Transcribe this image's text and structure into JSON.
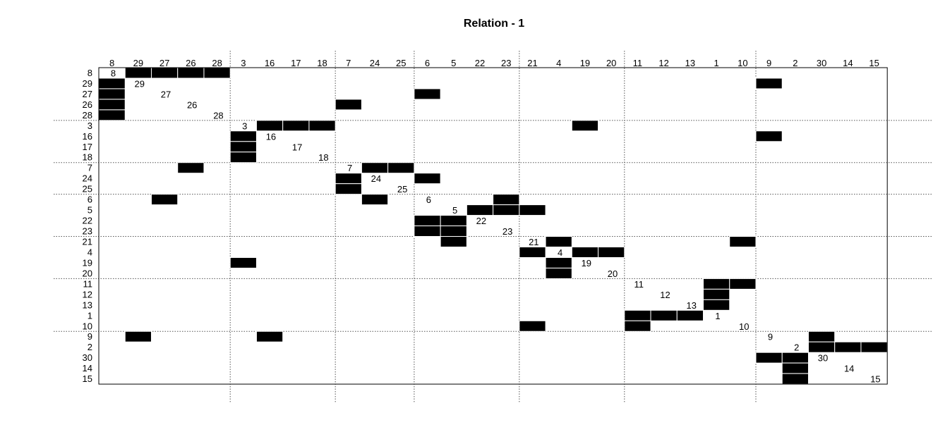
{
  "chart_data": {
    "type": "heatmap",
    "title": "Relation -  1",
    "order": [
      8,
      29,
      27,
      26,
      28,
      3,
      16,
      17,
      18,
      7,
      24,
      25,
      6,
      5,
      22,
      23,
      21,
      4,
      19,
      20,
      11,
      12,
      13,
      1,
      10,
      9,
      2,
      30,
      14,
      15
    ],
    "groups": [
      [
        8,
        29,
        27,
        26,
        28
      ],
      [
        3,
        16,
        17,
        18
      ],
      [
        7,
        24,
        25
      ],
      [
        6,
        5,
        22,
        23
      ],
      [
        21,
        4,
        19,
        20
      ],
      [
        11,
        12,
        13,
        1,
        10
      ],
      [
        9,
        2,
        30,
        14,
        15
      ]
    ],
    "ties": [
      [
        8,
        29
      ],
      [
        8,
        27
      ],
      [
        8,
        26
      ],
      [
        8,
        28
      ],
      [
        29,
        8
      ],
      [
        29,
        9
      ],
      [
        27,
        8
      ],
      [
        27,
        6
      ],
      [
        26,
        8
      ],
      [
        26,
        7
      ],
      [
        28,
        8
      ],
      [
        3,
        16
      ],
      [
        3,
        17
      ],
      [
        3,
        18
      ],
      [
        3,
        19
      ],
      [
        16,
        3
      ],
      [
        16,
        9
      ],
      [
        17,
        3
      ],
      [
        18,
        3
      ],
      [
        7,
        26
      ],
      [
        7,
        24
      ],
      [
        7,
        25
      ],
      [
        24,
        7
      ],
      [
        24,
        6
      ],
      [
        25,
        7
      ],
      [
        6,
        27
      ],
      [
        6,
        24
      ],
      [
        6,
        23
      ],
      [
        5,
        22
      ],
      [
        5,
        23
      ],
      [
        5,
        21
      ],
      [
        22,
        6
      ],
      [
        22,
        5
      ],
      [
        23,
        6
      ],
      [
        23,
        5
      ],
      [
        21,
        5
      ],
      [
        21,
        4
      ],
      [
        21,
        10
      ],
      [
        4,
        21
      ],
      [
        4,
        19
      ],
      [
        4,
        20
      ],
      [
        19,
        3
      ],
      [
        19,
        4
      ],
      [
        20,
        4
      ],
      [
        11,
        1
      ],
      [
        11,
        10
      ],
      [
        12,
        1
      ],
      [
        13,
        1
      ],
      [
        1,
        11
      ],
      [
        1,
        12
      ],
      [
        1,
        13
      ],
      [
        10,
        21
      ],
      [
        10,
        11
      ],
      [
        9,
        29
      ],
      [
        9,
        16
      ],
      [
        9,
        30
      ],
      [
        2,
        30
      ],
      [
        2,
        14
      ],
      [
        2,
        15
      ],
      [
        30,
        9
      ],
      [
        30,
        2
      ],
      [
        14,
        2
      ],
      [
        15,
        2
      ]
    ],
    "fill_color": "#000000",
    "grid_color": "#555555"
  }
}
